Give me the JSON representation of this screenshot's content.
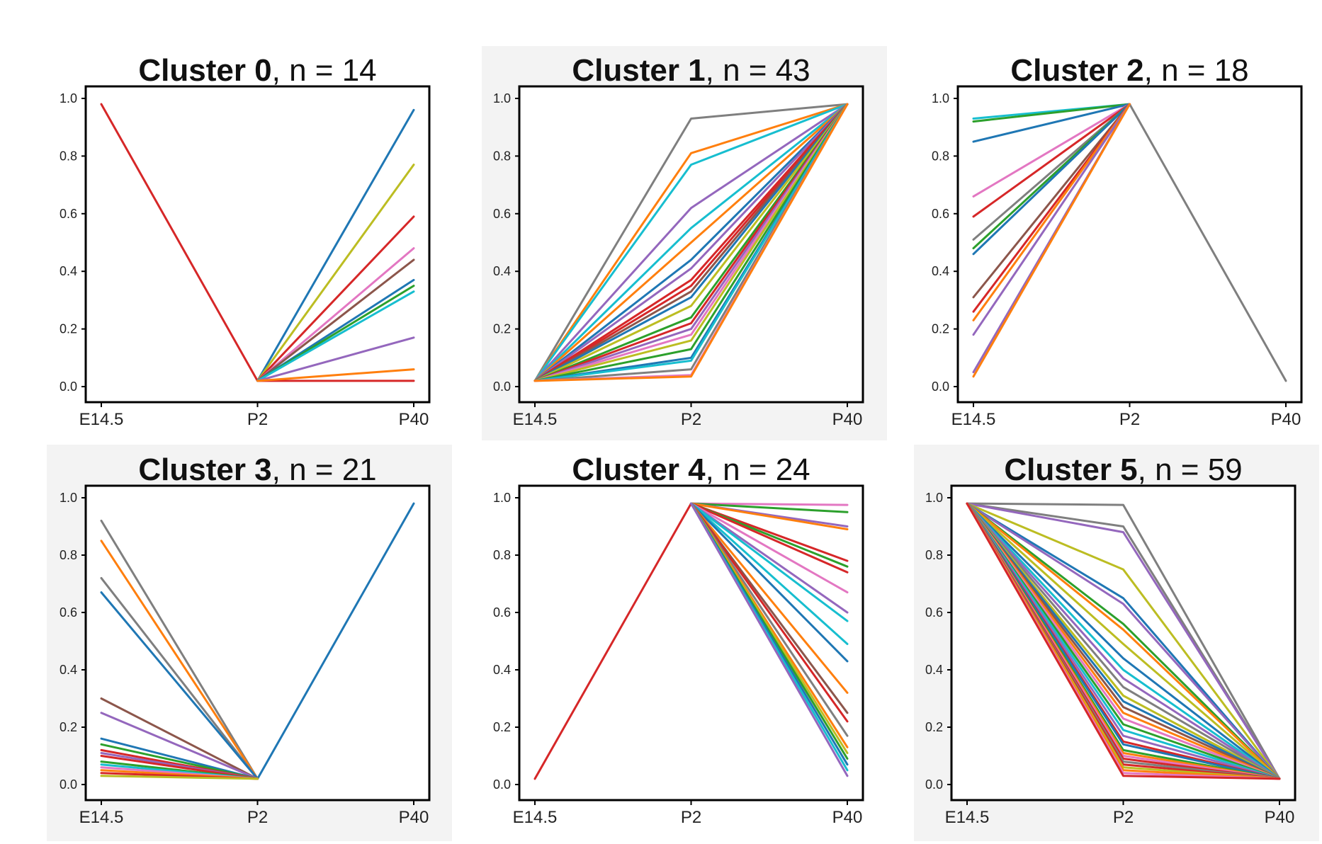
{
  "figure": {
    "colors": {
      "palette": [
        "#1f77b4",
        "#ff7f0e",
        "#2ca02c",
        "#d62728",
        "#9467bd",
        "#8c564b",
        "#e377c2",
        "#7f7f7f",
        "#bcbd22",
        "#17becf"
      ],
      "panel_shade": "#f3f3f3",
      "axis": "#000000"
    }
  },
  "chart_data": [
    {
      "type": "line",
      "title_bold": "Cluster 0",
      "title_rest": ", n = 14",
      "categories": [
        "E14.5",
        "P2",
        "P40"
      ],
      "yticks": [
        "0.0",
        "0.2",
        "0.4",
        "0.6",
        "0.8",
        "1.0"
      ],
      "ylim": [
        0,
        1
      ],
      "shaded": false,
      "series": [
        {
          "color": "#d62728",
          "values": [
            0.98,
            0.02,
            0.02
          ]
        },
        {
          "color": "#1f77b4",
          "values": [
            null,
            0.02,
            0.96
          ]
        },
        {
          "color": "#bcbd22",
          "values": [
            null,
            0.02,
            0.77
          ]
        },
        {
          "color": "#d62728",
          "values": [
            null,
            0.02,
            0.59
          ]
        },
        {
          "color": "#e377c2",
          "values": [
            null,
            0.02,
            0.48
          ]
        },
        {
          "color": "#8c564b",
          "values": [
            null,
            0.02,
            0.44
          ]
        },
        {
          "color": "#1f77b4",
          "values": [
            null,
            0.02,
            0.37
          ]
        },
        {
          "color": "#2ca02c",
          "values": [
            null,
            0.02,
            0.35
          ]
        },
        {
          "color": "#17becf",
          "values": [
            null,
            0.02,
            0.33
          ]
        },
        {
          "color": "#9467bd",
          "values": [
            null,
            0.02,
            0.17
          ]
        },
        {
          "color": "#ff7f0e",
          "values": [
            null,
            0.02,
            0.06
          ]
        }
      ]
    },
    {
      "type": "line",
      "title_bold": "Cluster 1",
      "title_rest": ", n = 43",
      "categories": [
        "E14.5",
        "P2",
        "P40"
      ],
      "yticks": [
        "0.0",
        "0.2",
        "0.4",
        "0.6",
        "0.8",
        "1.0"
      ],
      "ylim": [
        0,
        1
      ],
      "shaded": true,
      "series": [
        {
          "color": "#7f7f7f",
          "values": [
            0.02,
            0.93,
            0.98
          ]
        },
        {
          "color": "#ff7f0e",
          "values": [
            0.02,
            0.81,
            0.98
          ]
        },
        {
          "color": "#17becf",
          "values": [
            0.02,
            0.77,
            0.98
          ]
        },
        {
          "color": "#9467bd",
          "values": [
            0.02,
            0.62,
            0.98
          ]
        },
        {
          "color": "#17becf",
          "values": [
            0.02,
            0.55,
            0.98
          ]
        },
        {
          "color": "#ff7f0e",
          "values": [
            0.02,
            0.5,
            0.98
          ]
        },
        {
          "color": "#1f77b4",
          "values": [
            0.02,
            0.44,
            0.98
          ]
        },
        {
          "color": "#9467bd",
          "values": [
            0.02,
            0.41,
            0.98
          ]
        },
        {
          "color": "#d62728",
          "values": [
            0.02,
            0.37,
            0.98
          ]
        },
        {
          "color": "#d62728",
          "values": [
            0.02,
            0.35,
            0.98
          ]
        },
        {
          "color": "#8c564b",
          "values": [
            0.02,
            0.33,
            0.98
          ]
        },
        {
          "color": "#1f77b4",
          "values": [
            0.02,
            0.31,
            0.98
          ]
        },
        {
          "color": "#bcbd22",
          "values": [
            0.02,
            0.28,
            0.98
          ]
        },
        {
          "color": "#2ca02c",
          "values": [
            0.02,
            0.24,
            0.98
          ]
        },
        {
          "color": "#d62728",
          "values": [
            0.02,
            0.22,
            0.98
          ]
        },
        {
          "color": "#9467bd",
          "values": [
            0.02,
            0.2,
            0.98
          ]
        },
        {
          "color": "#e377c2",
          "values": [
            0.02,
            0.18,
            0.98
          ]
        },
        {
          "color": "#bcbd22",
          "values": [
            0.02,
            0.16,
            0.98
          ]
        },
        {
          "color": "#2ca02c",
          "values": [
            0.02,
            0.13,
            0.98
          ]
        },
        {
          "color": "#1f77b4",
          "values": [
            0.02,
            0.1,
            0.98
          ]
        },
        {
          "color": "#17becf",
          "values": [
            0.02,
            0.09,
            0.98
          ]
        },
        {
          "color": "#7f7f7f",
          "values": [
            0.02,
            0.06,
            0.98
          ]
        },
        {
          "color": "#e377c2",
          "values": [
            0.02,
            0.04,
            0.98
          ]
        },
        {
          "color": "#ff7f0e",
          "values": [
            0.02,
            0.035,
            0.98
          ]
        }
      ]
    },
    {
      "type": "line",
      "title_bold": "Cluster 2",
      "title_rest": ", n = 18",
      "categories": [
        "E14.5",
        "P2",
        "P40"
      ],
      "yticks": [
        "0.0",
        "0.2",
        "0.4",
        "0.6",
        "0.8",
        "1.0"
      ],
      "ylim": [
        0,
        1
      ],
      "shaded": false,
      "series": [
        {
          "color": "#7f7f7f",
          "values": [
            null,
            0.98,
            0.02
          ]
        },
        {
          "color": "#17becf",
          "values": [
            0.93,
            0.98,
            null
          ]
        },
        {
          "color": "#2ca02c",
          "values": [
            0.92,
            0.98,
            null
          ]
        },
        {
          "color": "#1f77b4",
          "values": [
            0.85,
            0.98,
            null
          ]
        },
        {
          "color": "#e377c2",
          "values": [
            0.66,
            0.98,
            null
          ]
        },
        {
          "color": "#d62728",
          "values": [
            0.59,
            0.98,
            null
          ]
        },
        {
          "color": "#7f7f7f",
          "values": [
            0.51,
            0.98,
            null
          ]
        },
        {
          "color": "#2ca02c",
          "values": [
            0.48,
            0.98,
            null
          ]
        },
        {
          "color": "#1f77b4",
          "values": [
            0.46,
            0.98,
            null
          ]
        },
        {
          "color": "#8c564b",
          "values": [
            0.31,
            0.98,
            null
          ]
        },
        {
          "color": "#d62728",
          "values": [
            0.26,
            0.98,
            null
          ]
        },
        {
          "color": "#ff7f0e",
          "values": [
            0.23,
            0.98,
            null
          ]
        },
        {
          "color": "#9467bd",
          "values": [
            0.18,
            0.98,
            null
          ]
        },
        {
          "color": "#9467bd",
          "values": [
            0.05,
            0.98,
            null
          ]
        },
        {
          "color": "#ff7f0e",
          "values": [
            0.035,
            0.98,
            null
          ]
        }
      ]
    },
    {
      "type": "line",
      "title_bold": "Cluster 3",
      "title_rest": ", n = 21",
      "categories": [
        "E14.5",
        "P2",
        "P40"
      ],
      "yticks": [
        "0.0",
        "0.2",
        "0.4",
        "0.6",
        "0.8",
        "1.0"
      ],
      "ylim": [
        0,
        1
      ],
      "shaded": true,
      "series": [
        {
          "color": "#1f77b4",
          "values": [
            null,
            0.02,
            0.98
          ]
        },
        {
          "color": "#7f7f7f",
          "values": [
            0.92,
            0.02,
            null
          ]
        },
        {
          "color": "#ff7f0e",
          "values": [
            0.85,
            0.02,
            null
          ]
        },
        {
          "color": "#7f7f7f",
          "values": [
            0.72,
            0.02,
            null
          ]
        },
        {
          "color": "#1f77b4",
          "values": [
            0.67,
            0.02,
            null
          ]
        },
        {
          "color": "#8c564b",
          "values": [
            0.3,
            0.02,
            null
          ]
        },
        {
          "color": "#9467bd",
          "values": [
            0.25,
            0.02,
            null
          ]
        },
        {
          "color": "#1f77b4",
          "values": [
            0.16,
            0.02,
            null
          ]
        },
        {
          "color": "#2ca02c",
          "values": [
            0.14,
            0.02,
            null
          ]
        },
        {
          "color": "#d62728",
          "values": [
            0.12,
            0.02,
            null
          ]
        },
        {
          "color": "#9467bd",
          "values": [
            0.11,
            0.02,
            null
          ]
        },
        {
          "color": "#d62728",
          "values": [
            0.1,
            0.02,
            null
          ]
        },
        {
          "color": "#2ca02c",
          "values": [
            0.08,
            0.02,
            null
          ]
        },
        {
          "color": "#17becf",
          "values": [
            0.07,
            0.02,
            null
          ]
        },
        {
          "color": "#e377c2",
          "values": [
            0.06,
            0.02,
            null
          ]
        },
        {
          "color": "#ff7f0e",
          "values": [
            0.05,
            0.02,
            null
          ]
        },
        {
          "color": "#d62728",
          "values": [
            0.04,
            0.02,
            null
          ]
        },
        {
          "color": "#bcbd22",
          "values": [
            0.03,
            0.02,
            null
          ]
        }
      ]
    },
    {
      "type": "line",
      "title_bold": "Cluster 4",
      "title_rest": ", n = 24",
      "categories": [
        "E14.5",
        "P2",
        "P40"
      ],
      "yticks": [
        "0.0",
        "0.2",
        "0.4",
        "0.6",
        "0.8",
        "1.0"
      ],
      "ylim": [
        0,
        1
      ],
      "shaded": false,
      "series": [
        {
          "color": "#d62728",
          "values": [
            0.02,
            0.98,
            null
          ]
        },
        {
          "color": "#e377c2",
          "values": [
            null,
            0.98,
            0.975
          ]
        },
        {
          "color": "#2ca02c",
          "values": [
            null,
            0.98,
            0.95
          ]
        },
        {
          "color": "#9467bd",
          "values": [
            null,
            0.98,
            0.9
          ]
        },
        {
          "color": "#ff7f0e",
          "values": [
            null,
            0.98,
            0.89
          ]
        },
        {
          "color": "#d62728",
          "values": [
            null,
            0.98,
            0.78
          ]
        },
        {
          "color": "#2ca02c",
          "values": [
            null,
            0.98,
            0.76
          ]
        },
        {
          "color": "#d62728",
          "values": [
            null,
            0.98,
            0.74
          ]
        },
        {
          "color": "#e377c2",
          "values": [
            null,
            0.98,
            0.67
          ]
        },
        {
          "color": "#9467bd",
          "values": [
            null,
            0.98,
            0.6
          ]
        },
        {
          "color": "#17becf",
          "values": [
            null,
            0.98,
            0.57
          ]
        },
        {
          "color": "#17becf",
          "values": [
            null,
            0.98,
            0.49
          ]
        },
        {
          "color": "#1f77b4",
          "values": [
            null,
            0.98,
            0.43
          ]
        },
        {
          "color": "#ff7f0e",
          "values": [
            null,
            0.98,
            0.32
          ]
        },
        {
          "color": "#8c564b",
          "values": [
            null,
            0.98,
            0.25
          ]
        },
        {
          "color": "#d62728",
          "values": [
            null,
            0.98,
            0.22
          ]
        },
        {
          "color": "#7f7f7f",
          "values": [
            null,
            0.98,
            0.17
          ]
        },
        {
          "color": "#ff7f0e",
          "values": [
            null,
            0.98,
            0.13
          ]
        },
        {
          "color": "#bcbd22",
          "values": [
            null,
            0.98,
            0.11
          ]
        },
        {
          "color": "#2ca02c",
          "values": [
            null,
            0.98,
            0.09
          ]
        },
        {
          "color": "#1f77b4",
          "values": [
            null,
            0.98,
            0.07
          ]
        },
        {
          "color": "#17becf",
          "values": [
            null,
            0.98,
            0.05
          ]
        },
        {
          "color": "#9467bd",
          "values": [
            null,
            0.98,
            0.03
          ]
        }
      ]
    },
    {
      "type": "line",
      "title_bold": "Cluster 5",
      "title_rest": ", n = 59",
      "categories": [
        "E14.5",
        "P2",
        "P40"
      ],
      "yticks": [
        "0.0",
        "0.2",
        "0.4",
        "0.6",
        "0.8",
        "1.0"
      ],
      "ylim": [
        0,
        1
      ],
      "shaded": true,
      "series": [
        {
          "color": "#7f7f7f",
          "values": [
            0.98,
            0.975,
            0.02
          ]
        },
        {
          "color": "#7f7f7f",
          "values": [
            0.98,
            0.9,
            0.02
          ]
        },
        {
          "color": "#9467bd",
          "values": [
            0.98,
            0.88,
            0.02
          ]
        },
        {
          "color": "#bcbd22",
          "values": [
            0.98,
            0.75,
            0.02
          ]
        },
        {
          "color": "#1f77b4",
          "values": [
            0.98,
            0.65,
            0.02
          ]
        },
        {
          "color": "#9467bd",
          "values": [
            0.98,
            0.63,
            0.02
          ]
        },
        {
          "color": "#2ca02c",
          "values": [
            0.98,
            0.56,
            0.02
          ]
        },
        {
          "color": "#ff7f0e",
          "values": [
            0.98,
            0.54,
            0.02
          ]
        },
        {
          "color": "#bcbd22",
          "values": [
            0.98,
            0.49,
            0.02
          ]
        },
        {
          "color": "#1f77b4",
          "values": [
            0.98,
            0.44,
            0.02
          ]
        },
        {
          "color": "#17becf",
          "values": [
            0.98,
            0.4,
            0.02
          ]
        },
        {
          "color": "#9467bd",
          "values": [
            0.98,
            0.37,
            0.02
          ]
        },
        {
          "color": "#7f7f7f",
          "values": [
            0.98,
            0.34,
            0.02
          ]
        },
        {
          "color": "#bcbd22",
          "values": [
            0.98,
            0.31,
            0.02
          ]
        },
        {
          "color": "#1f77b4",
          "values": [
            0.98,
            0.29,
            0.02
          ]
        },
        {
          "color": "#8c564b",
          "values": [
            0.98,
            0.27,
            0.02
          ]
        },
        {
          "color": "#ff7f0e",
          "values": [
            0.98,
            0.25,
            0.02
          ]
        },
        {
          "color": "#e377c2",
          "values": [
            0.98,
            0.23,
            0.02
          ]
        },
        {
          "color": "#2ca02c",
          "values": [
            0.98,
            0.21,
            0.02
          ]
        },
        {
          "color": "#17becf",
          "values": [
            0.98,
            0.19,
            0.02
          ]
        },
        {
          "color": "#9467bd",
          "values": [
            0.98,
            0.17,
            0.02
          ]
        },
        {
          "color": "#d62728",
          "values": [
            0.98,
            0.15,
            0.02
          ]
        },
        {
          "color": "#1f77b4",
          "values": [
            0.98,
            0.14,
            0.02
          ]
        },
        {
          "color": "#2ca02c",
          "values": [
            0.98,
            0.12,
            0.02
          ]
        },
        {
          "color": "#ff7f0e",
          "values": [
            0.98,
            0.11,
            0.02
          ]
        },
        {
          "color": "#e377c2",
          "values": [
            0.98,
            0.1,
            0.02
          ]
        },
        {
          "color": "#d62728",
          "values": [
            0.98,
            0.09,
            0.02
          ]
        },
        {
          "color": "#7f7f7f",
          "values": [
            0.98,
            0.08,
            0.02
          ]
        },
        {
          "color": "#d62728",
          "values": [
            0.98,
            0.07,
            0.02
          ]
        },
        {
          "color": "#bcbd22",
          "values": [
            0.98,
            0.06,
            0.02
          ]
        },
        {
          "color": "#ff7f0e",
          "values": [
            0.98,
            0.05,
            0.02
          ]
        },
        {
          "color": "#e377c2",
          "values": [
            0.98,
            0.04,
            0.02
          ]
        },
        {
          "color": "#d62728",
          "values": [
            0.98,
            0.03,
            0.02
          ]
        }
      ]
    }
  ]
}
